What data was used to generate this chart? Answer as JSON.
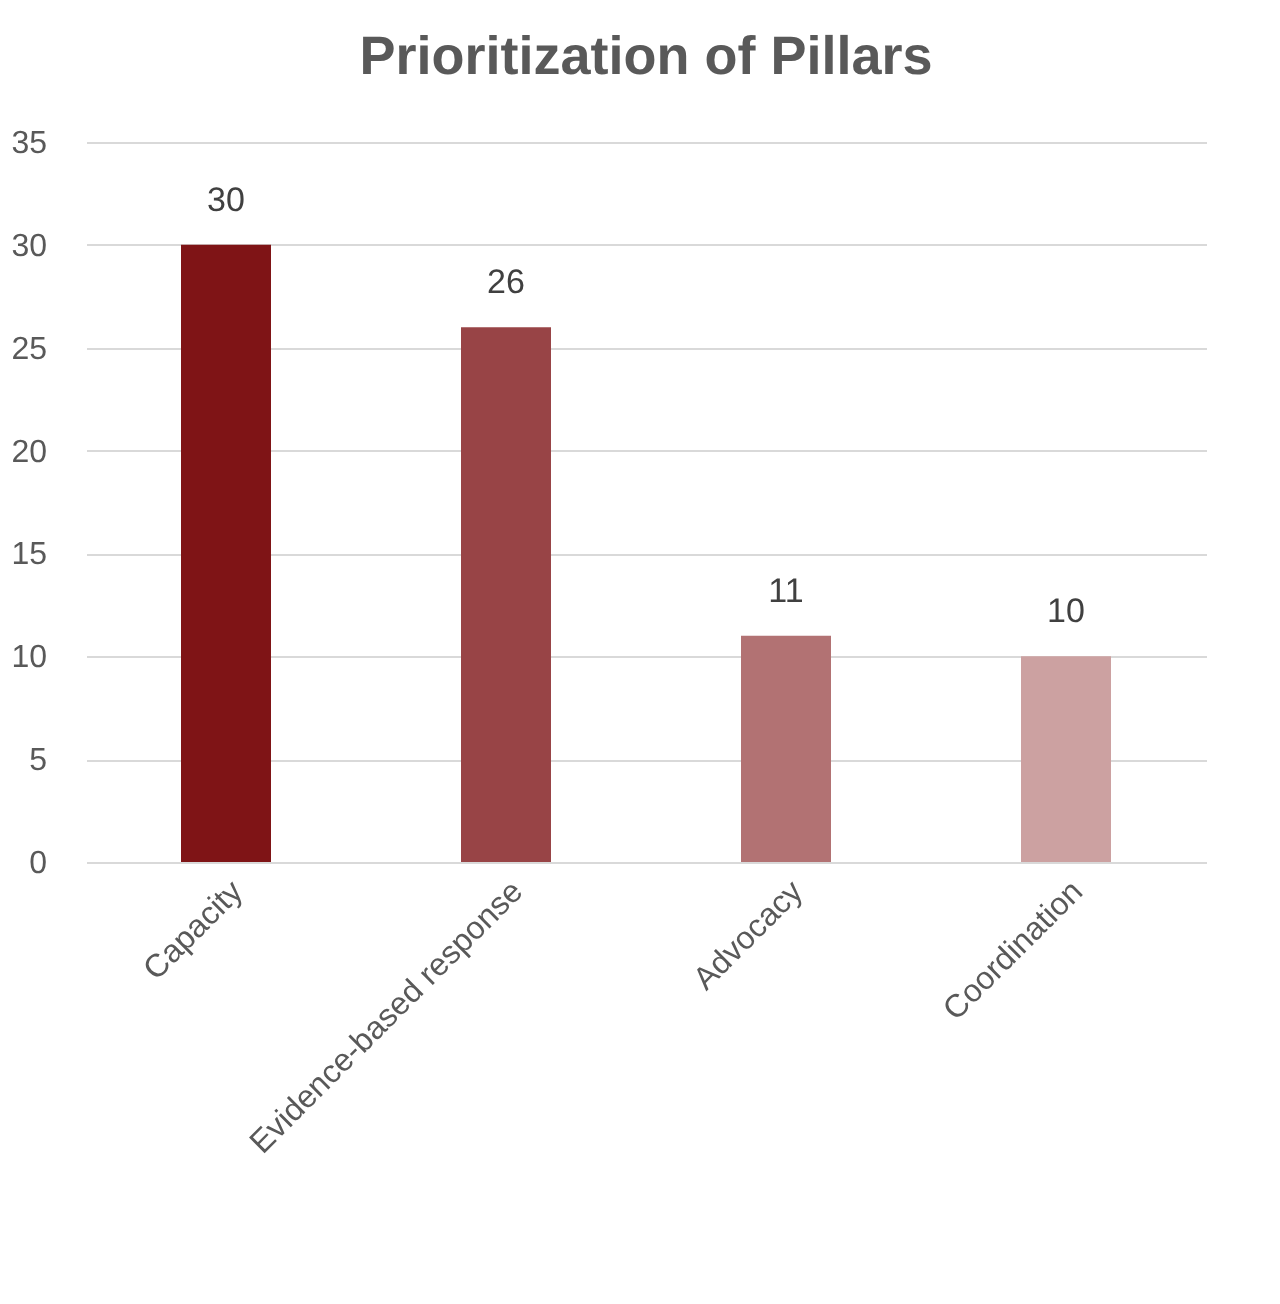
{
  "chart_data": {
    "type": "bar",
    "title": "Prioritization of Pillars",
    "categories": [
      "Capacity",
      "Evidence-based response",
      "Advocacy",
      "Coordination"
    ],
    "values": [
      30,
      26,
      11,
      10
    ],
    "colors": [
      "#7f1416",
      "#984446",
      "#b27273",
      "#cca1a1"
    ],
    "ylim": [
      0,
      35
    ],
    "yticks": [
      0,
      5,
      10,
      15,
      20,
      25,
      30,
      35
    ],
    "grid": "y",
    "data_labels": true
  }
}
